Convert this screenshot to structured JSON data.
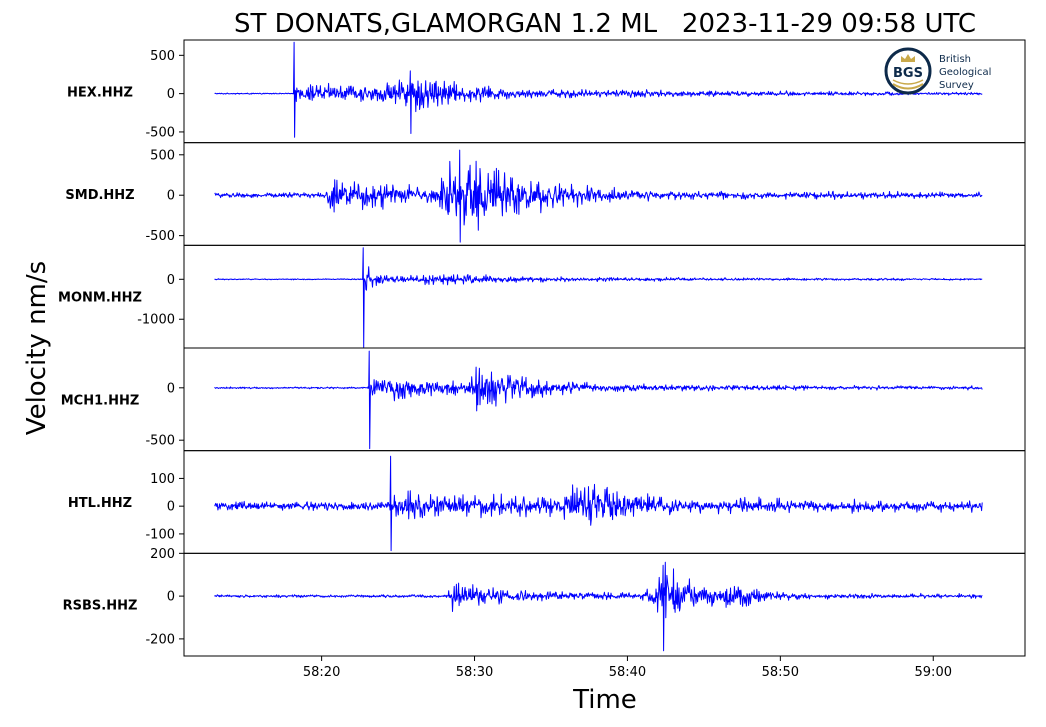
{
  "chart_data": {
    "type": "line",
    "title": "ST DONATS,GLAMORGAN 1.2 ML   2023-11-29 09:58 UTC",
    "xlabel": "Time",
    "ylabel": "Velocity nm/s",
    "x_ticks": [
      "58:20",
      "58:30",
      "58:40",
      "58:50",
      "59:00"
    ],
    "x_tick_seconds": [
      1220,
      1230,
      1240,
      1250,
      1260
    ],
    "xlim_seconds": [
      1211,
      1266
    ],
    "trace_range_seconds": [
      1213,
      1263.2
    ],
    "line_color": "#0000ff",
    "grid": false,
    "logo": {
      "mark": "BGS",
      "text_lines": [
        "British",
        "Geological",
        "Survey"
      ],
      "ring_color": "#0d2a4a",
      "accent_color": "#c9a94a"
    },
    "series": [
      {
        "name": "HEX.HHZ",
        "ylim": [
          -640,
          700
        ],
        "yticks": [
          500,
          0,
          -500
        ],
        "ytick_labels": [
          "500",
          "0",
          "-500"
        ],
        "noise": 8,
        "coda_max": 140,
        "phases": [
          {
            "t": 1218.2,
            "peak_pos": 670,
            "peak_neg": -570,
            "decay": 1.2,
            "buildup": 0.02
          },
          {
            "t": 1223.0,
            "amp": 200,
            "decay": 6,
            "buildup": 1.5
          },
          {
            "t": 1224.5,
            "amp": 330,
            "decay": 4,
            "buildup": 1.5,
            "neg_peak": -520
          }
        ]
      },
      {
        "name": "SMD.HHZ",
        "ylim": [
          -620,
          650
        ],
        "yticks": [
          500,
          0,
          -500
        ],
        "ytick_labels": [
          "500",
          "0",
          "-500"
        ],
        "noise": 35,
        "coda_max": 130,
        "phases": [
          {
            "t": 1220.3,
            "amp": 300,
            "decay": 5,
            "buildup": 0.4
          },
          {
            "t": 1226.8,
            "amp": 620,
            "decay": 5,
            "buildup": 2.5,
            "neg_peak": -580
          }
        ]
      },
      {
        "name": "MONM.HHZ",
        "ylim": [
          -1720,
          850
        ],
        "yticks": [
          0,
          -1000
        ],
        "ytick_labels": [
          "0",
          "-1000"
        ],
        "noise": 15,
        "coda_max": 110,
        "phases": [
          {
            "t": 1222.7,
            "peak_pos": 790,
            "peak_neg": -1700,
            "decay": 0.8,
            "buildup": 0.02
          },
          {
            "t": 1226.0,
            "amp": 180,
            "decay": 8,
            "buildup": 1.0
          }
        ]
      },
      {
        "name": "MCH1.HHZ",
        "ylim": [
          -600,
          380
        ],
        "yticks": [
          0,
          -500
        ],
        "ytick_labels": [
          "0",
          "-500"
        ],
        "noise": 10,
        "coda_max": 80,
        "phases": [
          {
            "t": 1223.1,
            "peak_pos": 350,
            "peak_neg": -580,
            "decay": 0.9,
            "buildup": 0.02
          },
          {
            "t": 1224.0,
            "amp": 140,
            "decay": 6,
            "buildup": 0.5
          },
          {
            "t": 1228.8,
            "amp": 220,
            "decay": 5,
            "buildup": 1.5,
            "neg_peak": -220
          }
        ]
      },
      {
        "name": "HTL.HHZ",
        "ylim": [
          -170,
          200
        ],
        "yticks": [
          100,
          0,
          -100
        ],
        "ytick_labels": [
          "100",
          "0",
          "-100"
        ],
        "noise": 18,
        "coda_max": 50,
        "phases": [
          {
            "t": 1224.5,
            "peak_pos": 180,
            "peak_neg": -160,
            "decay": 1.6,
            "buildup": 0.03
          },
          {
            "t": 1225.5,
            "amp": 70,
            "decay": 4,
            "buildup": 0.3
          },
          {
            "t": 1235.0,
            "amp": 110,
            "decay": 4,
            "buildup": 2.0
          }
        ]
      },
      {
        "name": "RSBS.HHZ",
        "ylim": [
          -280,
          200
        ],
        "yticks": [
          200,
          0,
          -200
        ],
        "ytick_labels": [
          "200",
          "0",
          "-200"
        ],
        "noise": 7,
        "coda_max": 30,
        "phases": [
          {
            "t": 1228.3,
            "amp": 70,
            "decay": 6,
            "buildup": 0.2
          },
          {
            "t": 1241.0,
            "amp": 160,
            "decay": 3,
            "buildup": 1.5,
            "neg_peak": -255
          },
          {
            "t": 1245.5,
            "amp": 80,
            "decay": 3,
            "buildup": 1.0
          }
        ]
      }
    ]
  }
}
